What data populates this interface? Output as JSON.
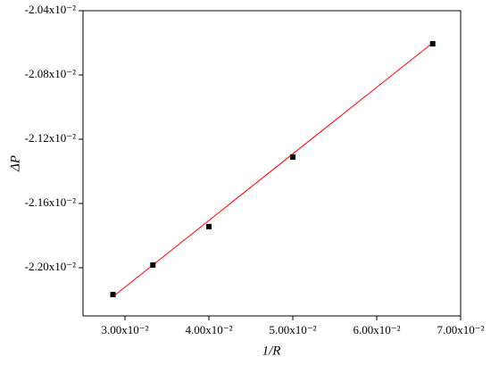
{
  "chart_data": {
    "type": "scatter",
    "x_label": "1/R",
    "y_label": "ΔP",
    "x": [
      0.02857,
      0.03333,
      0.04,
      0.05,
      0.06667
    ],
    "values": [
      -0.022167,
      -0.021983,
      -0.021744,
      -0.021311,
      -0.020606
    ],
    "color": "#000000",
    "fit": {
      "x": [
        0.02857,
        0.06667
      ],
      "values": [
        -0.02218,
        -0.0206
      ],
      "color": "#ff0000"
    },
    "xlim": [
      0.025,
      0.07
    ],
    "ylim": [
      -0.0223,
      -0.0204
    ],
    "xticks": [
      {
        "value": 0.03,
        "label": "3.00x10⁻²"
      },
      {
        "value": 0.04,
        "label": "4.00x10⁻²"
      },
      {
        "value": 0.05,
        "label": "5.00x10⁻²"
      },
      {
        "value": 0.06,
        "label": "6.00x10⁻²"
      },
      {
        "value": 0.07,
        "label": "7.00x10⁻²"
      }
    ],
    "yticks": [
      {
        "value": -0.0204,
        "label": "-2.04x10⁻²"
      },
      {
        "value": -0.0208,
        "label": "-2.08x10⁻²"
      },
      {
        "value": -0.0212,
        "label": "-2.12x10⁻²"
      },
      {
        "value": -0.0216,
        "label": "-2.16x10⁻²"
      },
      {
        "value": -0.022,
        "label": "-2.20x10⁻²"
      }
    ]
  }
}
